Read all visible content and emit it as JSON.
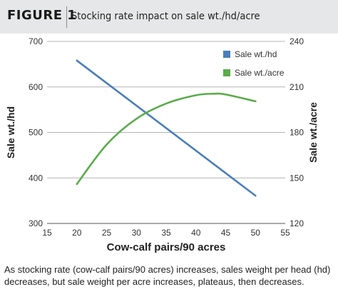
{
  "figure_label": "FIGURE 1",
  "caption": "As stocking rate (cow-calf pairs/90 acres) increases, sales weight per head (hd) decreases, but sale weight per acre increases, plateaus, then decreases.",
  "colors": {
    "header_bg": "#e6e7e8",
    "series_1": "#4a7ebb",
    "series_2": "#5aac4a",
    "grid": "#b5b5b5"
  },
  "chart_data": {
    "type": "line",
    "title": "Stocking rate impact on sale wt./hd/acre",
    "xlabel": "Cow-calf pairs/90 acres",
    "ylabel": "Sale wt./hd",
    "y2label": "Sale wt./acre",
    "xlim": [
      15,
      55
    ],
    "ylim": [
      300,
      700
    ],
    "y2lim": [
      120,
      240
    ],
    "x_ticks": [
      15,
      20,
      25,
      30,
      35,
      40,
      45,
      50,
      55
    ],
    "y_ticks": [
      300,
      400,
      500,
      600,
      700
    ],
    "y2_ticks": [
      120,
      150,
      180,
      210,
      240
    ],
    "grid": "horizontal",
    "legend_position": "top-right",
    "series": [
      {
        "name": "Sale wt./hd",
        "axis": "left",
        "color": "#4a7ebb",
        "x": [
          20,
          50
        ],
        "y": [
          658,
          361
        ]
      },
      {
        "name": "Sale wt./acre",
        "axis": "right",
        "color": "#5aac4a",
        "x": [
          20,
          25,
          30,
          35,
          40,
          43,
          45,
          50
        ],
        "y": [
          146,
          172,
          189,
          199,
          204.5,
          205.5,
          205,
          200.5
        ]
      }
    ]
  }
}
